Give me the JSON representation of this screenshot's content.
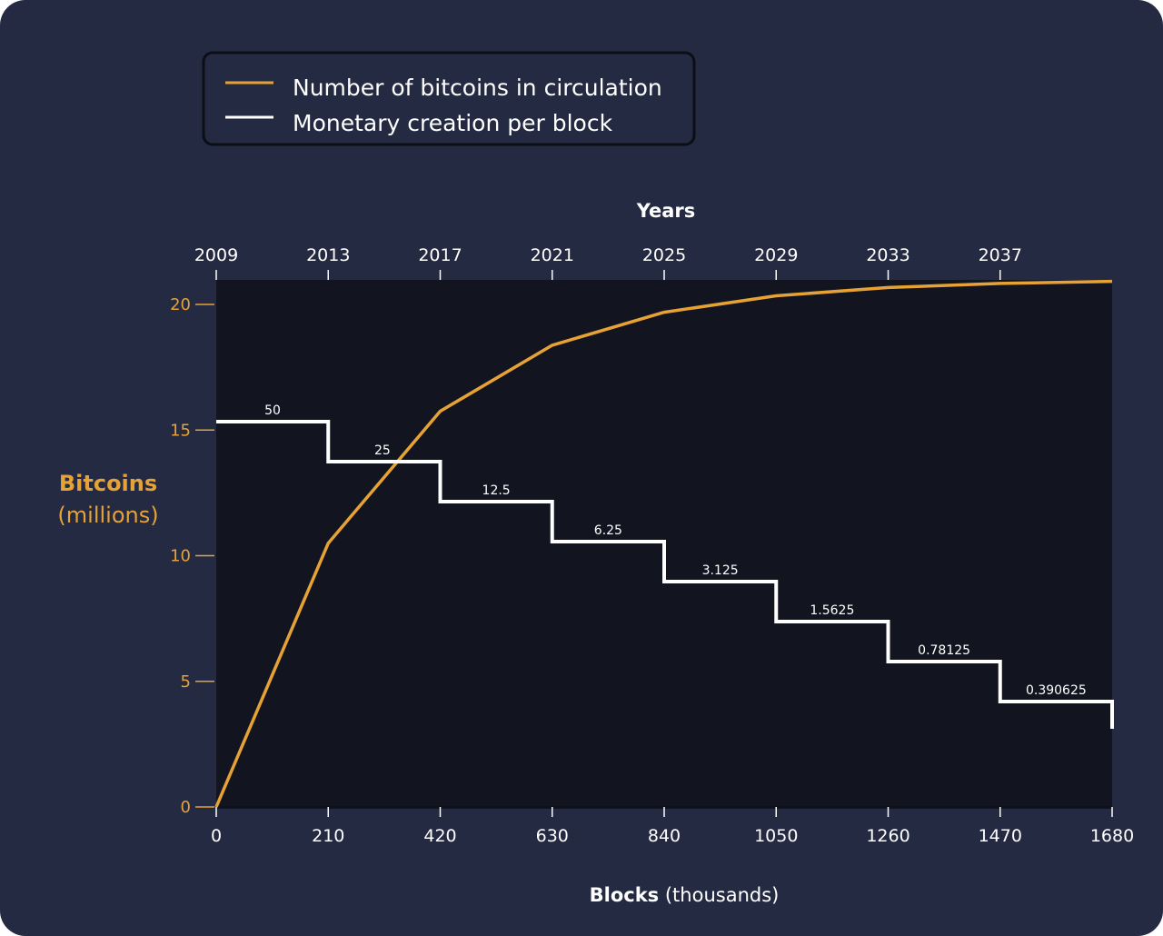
{
  "colors": {
    "background": "#232a42",
    "plot_background": "#12141f",
    "orange": "#e7a236",
    "white": "#ffffff"
  },
  "chart_data": {
    "type": "line",
    "legend": {
      "placement": "top-left",
      "entries": [
        {
          "label": "Number of bitcoins in circulation",
          "color": "#e7a236"
        },
        {
          "label": "Monetary creation per block",
          "color": "#ffffff"
        }
      ]
    },
    "top_axis": {
      "title": "Years",
      "ticks": [
        "2009",
        "2013",
        "2017",
        "2021",
        "2025",
        "2029",
        "2033",
        "2037"
      ],
      "tick_blocks": [
        0,
        210,
        420,
        630,
        840,
        1050,
        1260,
        1470
      ]
    },
    "xaxis": {
      "label_bold": "Blocks",
      "label_rest": " (thousands)",
      "ticks": [
        "0",
        "210",
        "420",
        "630",
        "840",
        "1050",
        "1260",
        "1470",
        "1680"
      ],
      "range": [
        0,
        1680
      ]
    },
    "yaxis": {
      "label_bold": "Bitcoins",
      "label_rest": "(millions)",
      "ticks": [
        "0",
        "5",
        "10",
        "15",
        "20"
      ],
      "range": [
        0,
        21
      ]
    },
    "series": [
      {
        "name": "Number of bitcoins in circulation",
        "x": [
          0,
          210,
          420,
          630,
          840,
          1050,
          1260,
          1470,
          1680
        ],
        "values": [
          0,
          10.5,
          15.75,
          18.375,
          19.6875,
          20.34375,
          20.671875,
          20.8359375,
          20.91796875
        ]
      },
      {
        "name": "Monetary creation per block",
        "reward_labels": [
          "50",
          "25",
          "12.5",
          "6.25",
          "3.125",
          "1.5625",
          "0.78125",
          "0.390625"
        ],
        "rewards": [
          50,
          25,
          12.5,
          6.25,
          3.125,
          1.5625,
          0.78125,
          0.390625
        ],
        "x_start": [
          0,
          210,
          420,
          630,
          840,
          1050,
          1260,
          1470
        ]
      }
    ]
  }
}
